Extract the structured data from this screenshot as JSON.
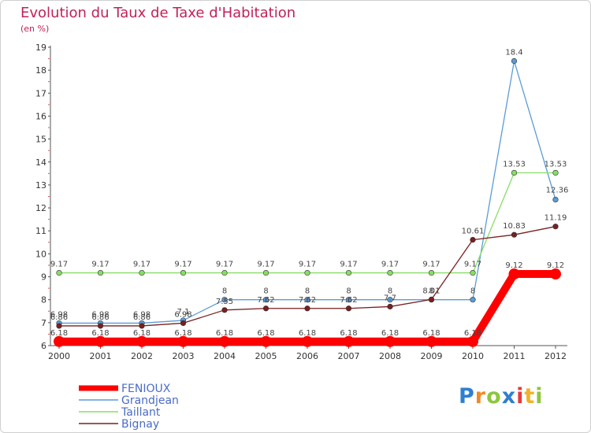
{
  "chart_data": {
    "type": "line",
    "title": "Evolution du Taux de Taxe d'Habitation",
    "subtitle": "(en %)",
    "x": [
      "2000",
      "2001",
      "2002",
      "2003",
      "2004",
      "2005",
      "2006",
      "2007",
      "2008",
      "2009",
      "2010",
      "2011",
      "2012"
    ],
    "ylim": [
      6,
      19
    ],
    "yticks": [
      6,
      7,
      8,
      9,
      10,
      11,
      12,
      13,
      14,
      15,
      16,
      17,
      18,
      19
    ],
    "grid": false,
    "legend_position": "bottom-left",
    "series": [
      {
        "name": "FENIOUX",
        "color": "#ff0000",
        "values": [
          6.18,
          6.18,
          6.18,
          6.18,
          6.18,
          6.18,
          6.18,
          6.18,
          6.18,
          6.18,
          6.18,
          9.12,
          9.12
        ],
        "labels": [
          "6.18",
          "6.18",
          "6.18",
          "6.18",
          "6.18",
          "6.18",
          "6.18",
          "6.18",
          "6.18",
          "6.18",
          "6.18",
          "9.12",
          "9.12"
        ]
      },
      {
        "name": "Grandjean",
        "color": "#5b9bd5",
        "values": [
          6.98,
          6.98,
          6.98,
          7.1,
          8,
          8,
          8,
          8,
          8,
          8,
          8,
          18.4,
          12.36
        ],
        "labels": [
          "6.98",
          "6.98",
          "6.98",
          "7.1",
          "8",
          "8",
          "8",
          "8",
          "8",
          "8",
          "8",
          "18.4",
          "12.36"
        ]
      },
      {
        "name": "Taillant",
        "color": "#88dd66",
        "values": [
          9.17,
          9.17,
          9.17,
          9.17,
          9.17,
          9.17,
          9.17,
          9.17,
          9.17,
          9.17,
          9.17,
          13.53,
          13.53
        ],
        "labels": [
          "9.17",
          "9.17",
          "9.17",
          "9.17",
          "9.17",
          "9.17",
          "9.17",
          "9.17",
          "9.17",
          "9.17",
          "9.17",
          "13.53",
          "13.53"
        ]
      },
      {
        "name": "Bignay",
        "color": "#7a1f1f",
        "values": [
          6.86,
          6.86,
          6.86,
          6.98,
          7.55,
          7.62,
          7.62,
          7.62,
          7.7,
          8.01,
          10.61,
          10.83,
          11.19
        ],
        "labels": [
          "6.86",
          "6.86",
          "6.86",
          "6.98",
          "7.55",
          "7.62",
          "7.62",
          "7.62",
          "7.7",
          "8.01",
          "10.61",
          "10.83",
          "11.19"
        ]
      }
    ]
  },
  "logo": {
    "letters": [
      "P",
      "r",
      "o",
      "x",
      "i",
      "t",
      "i"
    ],
    "colors": [
      "#2f7fd0",
      "#f08a2a",
      "#8dc63f",
      "#2f7fd0",
      "#e43b3b",
      "#f0b22a",
      "#8dc63f"
    ]
  }
}
